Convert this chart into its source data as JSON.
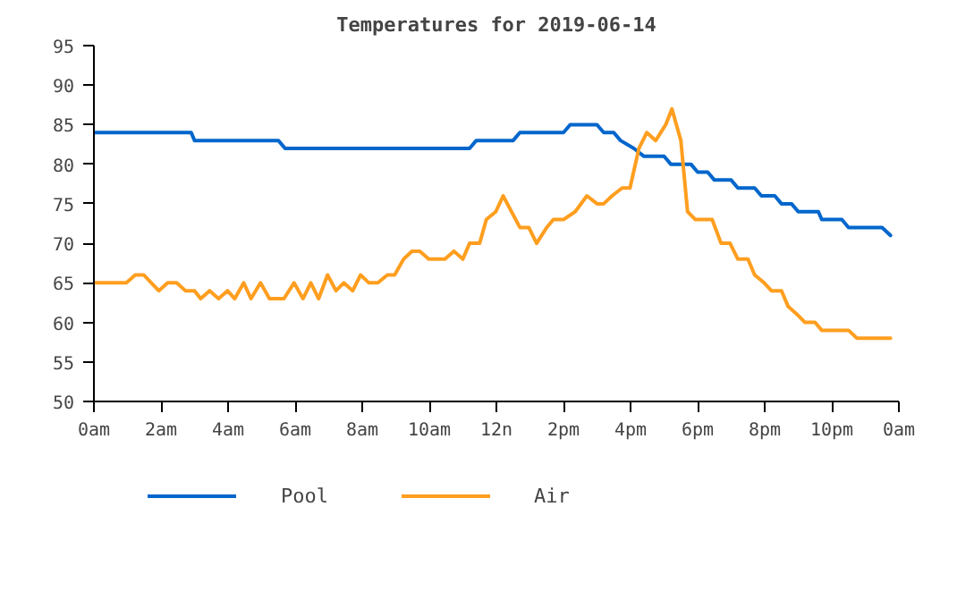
{
  "chart_data": {
    "type": "line",
    "title": "Temperatures for 2019-06-14",
    "legend": "bottom",
    "grid": false,
    "line_style": "solid",
    "marker": "none",
    "xlim": [
      "2019-06-14T00:00",
      "2019-06-15T00:00"
    ],
    "xticks": [
      {
        "value": "2019-06-14T00:00",
        "label": "0am"
      },
      {
        "value": "2019-06-14T02:00",
        "label": "2am"
      },
      {
        "value": "2019-06-14T04:00",
        "label": "4am"
      },
      {
        "value": "2019-06-14T06:00",
        "label": "6am"
      },
      {
        "value": "2019-06-14T08:00",
        "label": "8am"
      },
      {
        "value": "2019-06-14T10:00",
        "label": "10am"
      },
      {
        "value": "2019-06-14T12:00",
        "label": "12n"
      },
      {
        "value": "2019-06-14T14:00",
        "label": "2pm"
      },
      {
        "value": "2019-06-14T16:00",
        "label": "4pm"
      },
      {
        "value": "2019-06-14T18:00",
        "label": "6pm"
      },
      {
        "value": "2019-06-14T20:00",
        "label": "8pm"
      },
      {
        "value": "2019-06-14T22:00",
        "label": "10pm"
      },
      {
        "value": "2019-06-15T00:00",
        "label": "0am"
      }
    ],
    "ylim": [
      50,
      95
    ],
    "yticks": [
      50,
      55,
      60,
      65,
      70,
      75,
      80,
      85,
      90,
      95
    ],
    "series": [
      {
        "name": "Pool",
        "color": "#0066cc",
        "x": [
          "2019-06-14T00:00",
          "2019-06-14T02:54",
          "2019-06-14T03:00",
          "2019-06-14T05:30",
          "2019-06-14T05:42",
          "2019-06-14T11:12",
          "2019-06-14T11:24",
          "2019-06-14T12:30",
          "2019-06-14T12:42",
          "2019-06-14T14:00",
          "2019-06-14T14:12",
          "2019-06-14T15:00",
          "2019-06-14T15:12",
          "2019-06-14T15:30",
          "2019-06-14T15:42",
          "2019-06-14T16:06",
          "2019-06-14T16:24",
          "2019-06-14T17:00",
          "2019-06-14T17:12",
          "2019-06-14T17:48",
          "2019-06-14T18:00",
          "2019-06-14T18:18",
          "2019-06-14T18:30",
          "2019-06-14T19:00",
          "2019-06-14T19:12",
          "2019-06-14T19:42",
          "2019-06-14T19:54",
          "2019-06-14T20:18",
          "2019-06-14T20:30",
          "2019-06-14T20:48",
          "2019-06-14T21:00",
          "2019-06-14T21:36",
          "2019-06-14T21:42",
          "2019-06-14T22:18",
          "2019-06-14T22:30",
          "2019-06-14T23:30",
          "2019-06-14T23:45"
        ],
        "values": [
          84,
          84,
          83,
          83,
          82,
          82,
          83,
          83,
          84,
          84,
          85,
          85,
          84,
          84,
          83,
          82,
          81,
          81,
          80,
          80,
          79,
          79,
          78,
          78,
          77,
          77,
          76,
          76,
          75,
          75,
          74,
          74,
          73,
          73,
          72,
          72,
          71
        ]
      },
      {
        "name": "Air",
        "color": "#ff9e1f",
        "x": [
          "2019-06-14T00:00",
          "2019-06-14T00:58",
          "2019-06-14T01:14",
          "2019-06-14T01:29",
          "2019-06-14T01:56",
          "2019-06-14T02:12",
          "2019-06-14T02:28",
          "2019-06-14T02:44",
          "2019-06-14T03:00",
          "2019-06-14T03:11",
          "2019-06-14T03:27",
          "2019-06-14T03:43",
          "2019-06-14T03:59",
          "2019-06-14T04:12",
          "2019-06-14T04:28",
          "2019-06-14T04:41",
          "2019-06-14T04:58",
          "2019-06-14T05:14",
          "2019-06-14T05:40",
          "2019-06-14T05:58",
          "2019-06-14T06:14",
          "2019-06-14T06:28",
          "2019-06-14T06:42",
          "2019-06-14T06:58",
          "2019-06-14T07:13",
          "2019-06-14T07:27",
          "2019-06-14T07:43",
          "2019-06-14T07:57",
          "2019-06-14T08:12",
          "2019-06-14T08:28",
          "2019-06-14T08:45",
          "2019-06-14T08:58",
          "2019-06-14T09:14",
          "2019-06-14T09:29",
          "2019-06-14T09:43",
          "2019-06-14T09:59",
          "2019-06-14T10:28",
          "2019-06-14T10:44",
          "2019-06-14T11:00",
          "2019-06-14T11:12",
          "2019-06-14T11:30",
          "2019-06-14T11:42",
          "2019-06-14T11:59",
          "2019-06-14T12:12",
          "2019-06-14T12:42",
          "2019-06-14T12:58",
          "2019-06-14T13:12",
          "2019-06-14T13:30",
          "2019-06-14T13:42",
          "2019-06-14T14:00",
          "2019-06-14T14:21",
          "2019-06-14T14:42",
          "2019-06-14T15:00",
          "2019-06-14T15:12",
          "2019-06-14T15:27",
          "2019-06-14T15:45",
          "2019-06-14T15:59",
          "2019-06-14T16:15",
          "2019-06-14T16:29",
          "2019-06-14T16:45",
          "2019-06-14T17:03",
          "2019-06-14T17:14",
          "2019-06-14T17:30",
          "2019-06-14T17:42",
          "2019-06-14T17:56",
          "2019-06-14T18:26",
          "2019-06-14T18:42",
          "2019-06-14T18:58",
          "2019-06-14T19:12",
          "2019-06-14T19:30",
          "2019-06-14T19:42",
          "2019-06-14T19:59",
          "2019-06-14T20:12",
          "2019-06-14T20:30",
          "2019-06-14T20:42",
          "2019-06-14T20:58",
          "2019-06-14T21:12",
          "2019-06-14T21:30",
          "2019-06-14T21:42",
          "2019-06-14T22:30",
          "2019-06-14T22:45",
          "2019-06-14T23:45"
        ],
        "values": [
          65,
          65,
          66,
          66,
          64,
          65,
          65,
          64,
          64,
          63,
          64,
          63,
          64,
          63,
          65,
          63,
          65,
          63,
          63,
          65,
          63,
          65,
          63,
          66,
          64,
          65,
          64,
          66,
          65,
          65,
          66,
          66,
          68,
          69,
          69,
          68,
          68,
          69,
          68,
          70,
          70,
          73,
          74,
          76,
          72,
          72,
          70,
          72,
          73,
          73,
          74,
          76,
          75,
          75,
          76,
          77,
          77,
          82,
          84,
          83,
          85,
          87,
          83,
          74,
          73,
          73,
          70,
          70,
          68,
          68,
          66,
          65,
          64,
          64,
          62,
          61,
          60,
          60,
          59,
          59,
          58,
          58
        ]
      }
    ]
  }
}
